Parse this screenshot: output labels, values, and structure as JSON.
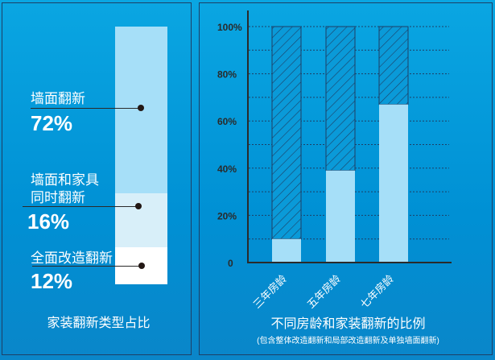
{
  "chart_data": [
    {
      "type": "bar",
      "stacked": true,
      "title": "家装翻新类型占比",
      "categories": [
        "墙面翻新",
        "墙面和家具同时翻新",
        "全面改造翻新"
      ],
      "values": [
        72,
        16,
        12
      ],
      "value_labels": [
        "72%",
        "16%",
        "12%"
      ],
      "label_lines": [
        [
          "墙面翻新"
        ],
        [
          "墙面和家具",
          "同时翻新"
        ],
        [
          "全面改造翻新"
        ]
      ],
      "colors": [
        "#a6dff8",
        "#d8eff9",
        "#ffffff"
      ]
    },
    {
      "type": "bar",
      "stacked": true,
      "title": "不同房龄和家装翻新的比例",
      "subtitle": "(包含整体改造翻新和局部改造翻新及单独墙面翻新)",
      "categories": [
        "三年房龄",
        "五年房龄",
        "七年房龄"
      ],
      "values": [
        10,
        39,
        67
      ],
      "yticks": [
        "0",
        "20%",
        "40%",
        "60%",
        "80%",
        "100%"
      ],
      "ylim": [
        0,
        100
      ],
      "grid": true,
      "colors": {
        "solid": "#a6dff8",
        "hatch": "#1d3f66"
      }
    }
  ]
}
